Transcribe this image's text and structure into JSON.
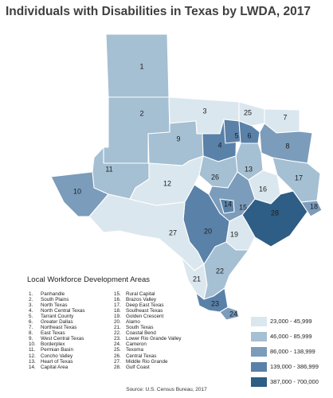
{
  "title": "Individuals with Disabilities in Texas by LWDA, 2017",
  "list_title": "Local Workforce Development Areas",
  "source": "Source: U.S. Census Bureau, 2017",
  "colors": {
    "c1": "#dbe7ee",
    "c2": "#a5bfd3",
    "c3": "#7b9cbb",
    "c4": "#5a81a8",
    "c5": "#2e5d85"
  },
  "legend": [
    {
      "label": "23,000 - 45,999",
      "color": "#dbe7ee"
    },
    {
      "label": "46,000 - 85,999",
      "color": "#a5bfd3"
    },
    {
      "label": "86,000 - 138,999",
      "color": "#7b9cbb"
    },
    {
      "label": "139,000 - 386,999",
      "color": "#5a81a8"
    },
    {
      "label": "387,000 - 700,000",
      "color": "#2e5d85"
    }
  ],
  "areas": [
    {
      "num": "1.",
      "id": "1",
      "name": "Panhandle"
    },
    {
      "num": "2.",
      "id": "2",
      "name": "South Plains"
    },
    {
      "num": "3.",
      "id": "3",
      "name": "North Texas"
    },
    {
      "num": "4.",
      "id": "4",
      "name": "North Central Texas"
    },
    {
      "num": "5.",
      "id": "5",
      "name": "Tarrant County"
    },
    {
      "num": "6.",
      "id": "6",
      "name": "Greater Dallas"
    },
    {
      "num": "7.",
      "id": "7",
      "name": "Northeast Texas"
    },
    {
      "num": "8.",
      "id": "8",
      "name": "East Texas"
    },
    {
      "num": "9.",
      "id": "9",
      "name": "West Central Texas"
    },
    {
      "num": "10.",
      "id": "10",
      "name": "Borderplex"
    },
    {
      "num": "11.",
      "id": "11",
      "name": "Permian Basin"
    },
    {
      "num": "12.",
      "id": "12",
      "name": "Concho Valley"
    },
    {
      "num": "13.",
      "id": "13",
      "name": "Heart of Texas"
    },
    {
      "num": "14.",
      "id": "14",
      "name": "Capital Area"
    },
    {
      "num": "15.",
      "id": "15",
      "name": "Rural Capital"
    },
    {
      "num": "16.",
      "id": "16",
      "name": "Brazos Valley"
    },
    {
      "num": "17.",
      "id": "17",
      "name": "Deep East Texas"
    },
    {
      "num": "18.",
      "id": "18",
      "name": "Southeast Texas"
    },
    {
      "num": "19.",
      "id": "19",
      "name": "Golden Crescent"
    },
    {
      "num": "20.",
      "id": "20",
      "name": "Alamo"
    },
    {
      "num": "21.",
      "id": "21",
      "name": "South Texas"
    },
    {
      "num": "22.",
      "id": "22",
      "name": "Coastal Bend"
    },
    {
      "num": "23.",
      "id": "23",
      "name": "Lower Rio Grande Valley"
    },
    {
      "num": "24.",
      "id": "24",
      "name": "Cameron"
    },
    {
      "num": "25.",
      "id": "25",
      "name": "Texoma"
    },
    {
      "num": "26.",
      "id": "26",
      "name": "Central Texas"
    },
    {
      "num": "27.",
      "id": "27",
      "name": "Middle Rio Grande"
    },
    {
      "num": "28.",
      "id": "28",
      "name": "Gulf Coast"
    }
  ],
  "map_labels": [
    "1",
    "2",
    "3",
    "4",
    "5",
    "6",
    "7",
    "8",
    "9",
    "10",
    "11",
    "12",
    "13",
    "14",
    "15",
    "16",
    "17",
    "18",
    "19",
    "20",
    "21",
    "22",
    "23",
    "24",
    "25",
    "26",
    "27",
    "28"
  ],
  "area_class": {
    "1": 2,
    "2": 2,
    "3": 1,
    "4": 4,
    "5": 4,
    "6": 4,
    "7": 1,
    "8": 3,
    "9": 2,
    "10": 3,
    "11": 2,
    "12": 1,
    "13": 2,
    "14": 4,
    "15": 3,
    "16": 1,
    "17": 2,
    "18": 3,
    "19": 1,
    "20": 4,
    "21": 1,
    "22": 2,
    "23": 4,
    "24": 3,
    "25": 1,
    "26": 2,
    "27": 1,
    "28": 5
  }
}
